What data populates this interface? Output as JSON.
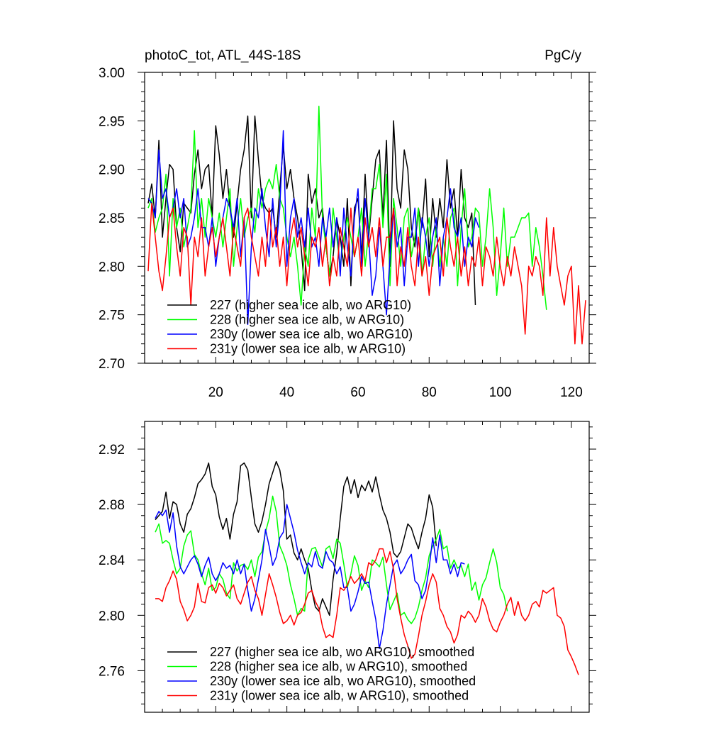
{
  "chart_data": [
    {
      "type": "line",
      "title": "photoC_tot, ATL_44S-18S",
      "units": "PgC/y",
      "xlabel": "",
      "ylabel": "",
      "xlim": [
        0,
        125
      ],
      "ylim": [
        2.7,
        3.0
      ],
      "xticks": [
        20,
        40,
        60,
        80,
        100,
        120
      ],
      "yticks": [
        2.7,
        2.75,
        2.8,
        2.85,
        2.9,
        2.95,
        3.0
      ],
      "ytick_labels": [
        "2.70",
        "2.75",
        "2.80",
        "2.85",
        "2.90",
        "2.95",
        "3.00"
      ],
      "legend_position": "bottom-left",
      "series": [
        {
          "name": "227 (higher sea ice alb, wo ARG10)",
          "color": "#000000",
          "x_start": 1,
          "values": [
            2.865,
            2.885,
            2.85,
            2.93,
            2.83,
            2.87,
            2.905,
            2.9,
            2.84,
            2.815,
            2.865,
            2.86,
            2.855,
            2.895,
            2.92,
            2.88,
            2.9,
            2.905,
            2.85,
            2.945,
            2.915,
            2.87,
            2.9,
            2.86,
            2.83,
            2.865,
            2.9,
            2.92,
            2.955,
            2.85,
            2.955,
            2.91,
            2.87,
            2.86,
            2.855,
            2.86,
            2.83,
            2.88,
            2.925,
            2.88,
            2.9,
            2.87,
            2.85,
            2.82,
            2.775,
            2.895,
            2.865,
            2.88,
            2.85,
            2.86,
            2.82,
            2.79,
            2.81,
            2.85,
            2.83,
            2.8,
            2.87,
            2.78,
            2.86,
            2.87,
            2.81,
            2.895,
            2.83,
            2.87,
            2.91,
            2.92,
            2.85,
            2.93,
            2.8,
            2.95,
            2.88,
            2.86,
            2.92,
            2.9,
            2.84,
            2.82,
            2.86,
            2.84,
            2.89,
            2.81,
            2.87,
            2.83,
            2.87,
            2.84,
            2.91,
            2.86,
            2.88,
            2.83,
            2.9,
            2.85,
            2.84,
            2.855,
            2.76
          ]
        },
        {
          "name": "228 (higher sea ice alb, w ARG10)",
          "color": "#00ff00",
          "x_start": 1,
          "values": [
            2.86,
            2.87,
            2.835,
            2.85,
            2.86,
            2.895,
            2.79,
            2.87,
            2.84,
            2.86,
            2.82,
            2.84,
            2.86,
            2.94,
            2.84,
            2.87,
            2.83,
            2.87,
            2.85,
            2.83,
            2.855,
            2.82,
            2.85,
            2.88,
            2.8,
            2.84,
            2.87,
            2.83,
            2.85,
            2.86,
            2.835,
            2.88,
            2.86,
            2.88,
            2.89,
            2.88,
            2.905,
            2.87,
            2.86,
            2.83,
            2.81,
            2.83,
            2.8,
            2.76,
            2.82,
            2.8,
            2.86,
            2.83,
            2.965,
            2.85,
            2.82,
            2.79,
            2.86,
            2.83,
            2.8,
            2.83,
            2.85,
            2.83,
            2.81,
            2.83,
            2.86,
            2.8,
            2.835,
            2.88,
            2.88,
            2.905,
            2.84,
            2.895,
            2.78,
            2.87,
            2.84,
            2.8,
            2.85,
            2.86,
            2.81,
            2.83,
            2.86,
            2.79,
            2.83,
            2.85,
            2.8,
            2.84,
            2.8,
            2.83,
            2.8,
            2.85,
            2.86,
            2.78,
            2.84,
            2.88,
            2.82,
            2.83,
            2.86,
            2.855,
            2.8,
            2.83,
            2.88,
            2.84,
            2.77,
            2.81,
            2.86,
            2.8,
            2.83,
            2.83,
            2.84,
            2.85,
            2.85,
            2.855,
            2.8,
            2.84,
            2.82,
            2.79,
            2.755
          ]
        },
        {
          "name": "230y (lower sea ice alb, wo ARG10)",
          "color": "#0000ff",
          "x_start": 1,
          "values": [
            2.87,
            2.865,
            2.85,
            2.92,
            2.87,
            2.88,
            2.85,
            2.86,
            2.88,
            2.85,
            2.87,
            2.82,
            2.83,
            2.85,
            2.88,
            2.84,
            2.84,
            2.82,
            2.85,
            2.8,
            2.83,
            2.85,
            2.87,
            2.86,
            2.84,
            2.87,
            2.81,
            2.85,
            2.74,
            2.82,
            2.86,
            2.85,
            2.88,
            2.84,
            2.81,
            2.87,
            2.82,
            2.86,
            2.94,
            2.8,
            2.85,
            2.87,
            2.83,
            2.85,
            2.82,
            2.86,
            2.82,
            2.83,
            2.8,
            2.85,
            2.83,
            2.86,
            2.82,
            2.85,
            2.79,
            2.86,
            2.82,
            2.79,
            2.85,
            2.88,
            2.8,
            2.87,
            2.83,
            2.77,
            2.79,
            2.84,
            2.8,
            2.75,
            2.81,
            2.86,
            2.82,
            2.84,
            2.78,
            2.83,
            2.83,
            2.86,
            2.8,
            2.85,
            2.83,
            2.8,
            2.83,
            2.85,
            2.78,
            2.83,
            2.85,
            2.88,
            2.84,
            2.83,
            2.85,
            2.8,
            2.83,
            2.82,
            2.85,
            2.84
          ]
        },
        {
          "name": "231y (lower sea ice alb, w ARG10)",
          "color": "#ff0000",
          "x_start": 1,
          "values": [
            2.795,
            2.865,
            2.83,
            2.795,
            2.775,
            2.81,
            2.85,
            2.86,
            2.82,
            2.79,
            2.84,
            2.83,
            2.76,
            2.83,
            2.81,
            2.85,
            2.79,
            2.82,
            2.84,
            2.81,
            2.83,
            2.85,
            2.82,
            2.79,
            2.84,
            2.82,
            2.8,
            2.85,
            2.86,
            2.83,
            2.81,
            2.79,
            2.83,
            2.8,
            2.86,
            2.82,
            2.84,
            2.8,
            2.83,
            2.78,
            2.83,
            2.85,
            2.82,
            2.84,
            2.81,
            2.78,
            2.83,
            2.82,
            2.84,
            2.8,
            2.83,
            2.78,
            2.81,
            2.79,
            2.84,
            2.82,
            2.8,
            2.86,
            2.81,
            2.83,
            2.79,
            2.85,
            2.82,
            2.84,
            2.81,
            2.85,
            2.8,
            2.83,
            2.83,
            2.86,
            2.78,
            2.82,
            2.8,
            2.84,
            2.8,
            2.78,
            2.83,
            2.79,
            2.81,
            2.77,
            2.81,
            2.82,
            2.83,
            2.79,
            2.85,
            2.82,
            2.8,
            2.83,
            2.79,
            2.82,
            2.78,
            2.81,
            2.8,
            2.83,
            2.78,
            2.82,
            2.81,
            2.79,
            2.83,
            2.8,
            2.78,
            2.81,
            2.79,
            2.82,
            2.8,
            2.78,
            2.73,
            2.8,
            2.79,
            2.81,
            2.8,
            2.77,
            2.85,
            2.79,
            2.84,
            2.8,
            2.78,
            2.76,
            2.79,
            2.8,
            2.72,
            2.78,
            2.72,
            2.765
          ]
        }
      ]
    },
    {
      "type": "line",
      "title": "",
      "xlabel": "",
      "ylabel": "",
      "xlim": [
        0,
        125
      ],
      "ylim": [
        2.73,
        2.94
      ],
      "xticks": [
        20,
        40,
        60,
        80,
        100,
        120
      ],
      "yticks": [
        2.76,
        2.8,
        2.84,
        2.88,
        2.92
      ],
      "ytick_labels": [
        "2.76",
        "2.80",
        "2.84",
        "2.88",
        "2.92"
      ],
      "legend_position": "bottom-left",
      "series": [
        {
          "name": "227 (higher sea ice alb, wo ARG10), smoothed",
          "color": "#000000",
          "x_start": 3,
          "values": [
            2.869,
            2.872,
            2.875,
            2.889,
            2.87,
            2.882,
            2.88,
            2.866,
            2.86,
            2.873,
            2.877,
            2.885,
            2.895,
            2.898,
            2.902,
            2.91,
            2.893,
            2.887,
            2.871,
            2.862,
            2.87,
            2.855,
            2.873,
            2.882,
            2.908,
            2.91,
            2.905,
            2.885,
            2.866,
            2.86,
            2.868,
            2.88,
            2.895,
            2.903,
            2.911,
            2.905,
            2.89,
            2.855,
            2.858,
            2.845,
            2.84,
            2.848,
            2.84,
            2.834,
            2.818,
            2.806,
            2.803,
            2.812,
            2.806,
            2.8,
            2.826,
            2.845,
            2.87,
            2.893,
            2.9,
            2.888,
            2.898,
            2.885,
            2.894,
            2.89,
            2.897,
            2.889,
            2.9,
            2.887,
            2.876,
            2.87,
            2.86,
            2.845,
            2.842,
            2.846,
            2.856,
            2.866,
            2.863,
            2.855,
            2.848,
            2.86,
            2.87,
            2.887,
            2.878,
            2.85
          ]
        },
        {
          "name": "228 (higher sea ice alb, w ARG10), smoothed",
          "color": "#00ff00",
          "x_start": 3,
          "values": [
            2.86,
            2.866,
            2.852,
            2.854,
            2.852,
            2.84,
            2.83,
            2.834,
            2.85,
            2.858,
            2.861,
            2.844,
            2.84,
            2.83,
            2.822,
            2.834,
            2.818,
            2.82,
            2.83,
            2.826,
            2.816,
            2.812,
            2.838,
            2.832,
            2.836,
            2.837,
            2.833,
            2.84,
            2.828,
            2.842,
            2.846,
            2.86,
            2.87,
            2.886,
            2.875,
            2.85,
            2.844,
            2.836,
            2.822,
            2.812,
            2.8,
            2.805,
            2.803,
            2.84,
            2.848,
            2.849,
            2.842,
            2.835,
            2.848,
            2.85,
            2.841,
            2.855,
            2.852,
            2.837,
            2.82,
            2.83,
            2.843,
            2.836,
            2.818,
            2.825,
            2.82,
            2.84,
            2.838,
            2.835,
            2.842,
            2.822,
            2.804,
            2.81,
            2.816,
            2.8,
            2.802,
            2.797,
            2.794,
            2.798,
            2.806,
            2.818,
            2.827,
            2.843,
            2.85,
            2.855,
            2.862,
            2.848,
            2.85,
            2.834,
            2.84,
            2.834,
            2.836,
            2.828,
            2.837,
            2.818,
            2.824,
            2.811,
            2.822,
            2.827,
            2.838,
            2.848,
            2.838,
            2.82,
            2.815,
            2.803
          ]
        },
        {
          "name": "230y (lower sea ice alb, wo ARG10), smoothed",
          "color": "#0000ff",
          "x_start": 3,
          "values": [
            2.87,
            2.875,
            2.872,
            2.876,
            2.86,
            2.874,
            2.85,
            2.835,
            2.83,
            2.835,
            2.84,
            2.843,
            2.837,
            2.828,
            2.836,
            2.842,
            2.83,
            2.825,
            2.83,
            2.838,
            2.834,
            2.836,
            2.83,
            2.84,
            2.83,
            2.837,
            2.818,
            2.803,
            2.812,
            2.826,
            2.84,
            2.862,
            2.85,
            2.836,
            2.842,
            2.856,
            2.86,
            2.88,
            2.87,
            2.86,
            2.847,
            2.838,
            2.83,
            2.838,
            2.835,
            2.846,
            2.836,
            2.834,
            2.846,
            2.84,
            2.838,
            2.83,
            2.835,
            2.82,
            2.82,
            2.803,
            2.808,
            2.817,
            2.828,
            2.823,
            2.824,
            2.81,
            2.797,
            2.776,
            2.789,
            2.808,
            2.822,
            2.836,
            2.84,
            2.83,
            2.834,
            2.84,
            2.844,
            2.825,
            2.822,
            2.812,
            2.818,
            2.834,
            2.856,
            2.838,
            2.858,
            2.84,
            2.84,
            2.83,
            2.837,
            2.828,
            2.838,
            2.837
          ]
        },
        {
          "name": "231y (lower sea ice alb, w ARG10), smoothed",
          "color": "#ff0000",
          "x_start": 3,
          "values": [
            2.812,
            2.812,
            2.81,
            2.82,
            2.825,
            2.832,
            2.826,
            2.81,
            2.804,
            2.796,
            2.8,
            2.806,
            2.823,
            2.81,
            2.809,
            2.82,
            2.822,
            2.816,
            2.823,
            2.82,
            2.814,
            2.818,
            2.822,
            2.812,
            2.808,
            2.816,
            2.824,
            2.828,
            2.818,
            2.812,
            2.8,
            2.815,
            2.83,
            2.822,
            2.813,
            2.802,
            2.794,
            2.796,
            2.8,
            2.793,
            2.8,
            2.802,
            2.808,
            2.816,
            2.818,
            2.81,
            2.805,
            2.792,
            2.784,
            2.786,
            2.784,
            2.8,
            2.82,
            2.818,
            2.822,
            2.828,
            2.823,
            2.826,
            2.83,
            2.825,
            2.838,
            2.836,
            2.84,
            2.848,
            2.848,
            2.838,
            2.846,
            2.833,
            2.812,
            2.798,
            2.786,
            2.778,
            2.769,
            2.772,
            2.785,
            2.8,
            2.81,
            2.822,
            2.83,
            2.824,
            2.805,
            2.8,
            2.792,
            2.788,
            2.78,
            2.786,
            2.8,
            2.798,
            2.803,
            2.8,
            2.795,
            2.8,
            2.812,
            2.806,
            2.796,
            2.79,
            2.788,
            2.795,
            2.8,
            2.808,
            2.813,
            2.8,
            2.81,
            2.8,
            2.796,
            2.8,
            2.808,
            2.81,
            2.806,
            2.818,
            2.816,
            2.818,
            2.82,
            2.8,
            2.798,
            2.792,
            2.775,
            2.77,
            2.764,
            2.757
          ]
        }
      ]
    }
  ]
}
